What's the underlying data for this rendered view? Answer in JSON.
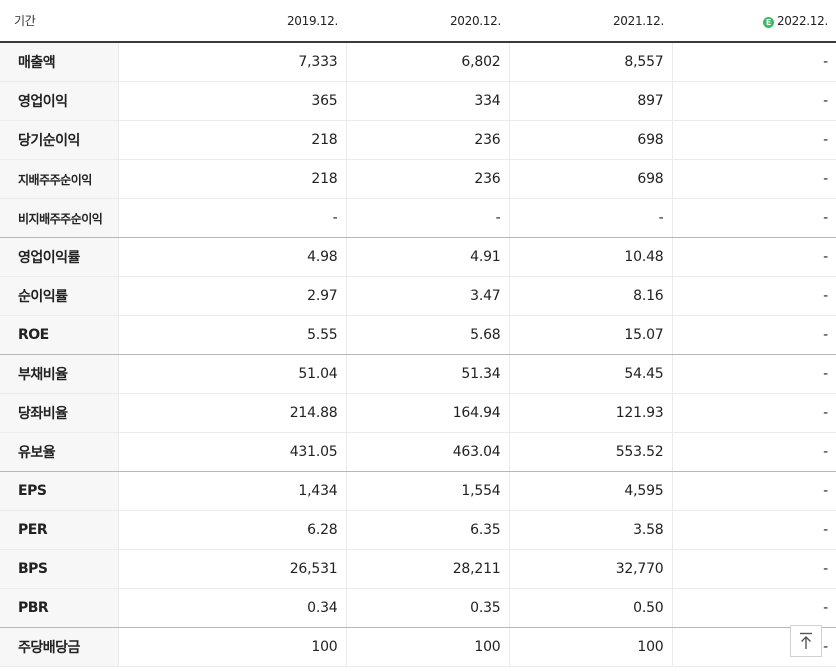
{
  "header": {
    "label": "기간",
    "periods": [
      "2019.12.",
      "2020.12.",
      "2021.12.",
      "2022.12."
    ],
    "estimate_badge": "E"
  },
  "rows": [
    {
      "label": "매출액",
      "values": [
        "7,333",
        "6,802",
        "8,557",
        "-"
      ]
    },
    {
      "label": "영업이익",
      "values": [
        "365",
        "334",
        "897",
        "-"
      ]
    },
    {
      "label": "당기순이익",
      "values": [
        "218",
        "236",
        "698",
        "-"
      ]
    },
    {
      "label": "지배주주순이익",
      "values": [
        "218",
        "236",
        "698",
        "-"
      ]
    },
    {
      "label": "비지배주주순이익",
      "values": [
        "-",
        "-",
        "-",
        "-"
      ]
    },
    {
      "label": "영업이익률",
      "values": [
        "4.98",
        "4.91",
        "10.48",
        "-"
      ]
    },
    {
      "label": "순이익률",
      "values": [
        "2.97",
        "3.47",
        "8.16",
        "-"
      ]
    },
    {
      "label": "ROE",
      "values": [
        "5.55",
        "5.68",
        "15.07",
        "-"
      ]
    },
    {
      "label": "부채비율",
      "values": [
        "51.04",
        "51.34",
        "54.45",
        "-"
      ]
    },
    {
      "label": "당좌비율",
      "values": [
        "214.88",
        "164.94",
        "121.93",
        "-"
      ]
    },
    {
      "label": "유보율",
      "values": [
        "431.05",
        "463.04",
        "553.52",
        "-"
      ]
    },
    {
      "label": "EPS",
      "values": [
        "1,434",
        "1,554",
        "4,595",
        "-"
      ]
    },
    {
      "label": "PER",
      "values": [
        "6.28",
        "6.35",
        "3.58",
        "-"
      ]
    },
    {
      "label": "BPS",
      "values": [
        "26,531",
        "28,211",
        "32,770",
        "-"
      ]
    },
    {
      "label": "PBR",
      "values": [
        "0.34",
        "0.35",
        "0.50",
        "-"
      ]
    },
    {
      "label": "주당배당금",
      "values": [
        "100",
        "100",
        "100",
        "-"
      ]
    }
  ],
  "colors": {
    "estimate_badge": "#3fb868",
    "label_background": "#f7f7f7",
    "header_rule": "#3a3a3a"
  },
  "icons": {
    "top_button": "arrow-up-to-top-icon"
  }
}
